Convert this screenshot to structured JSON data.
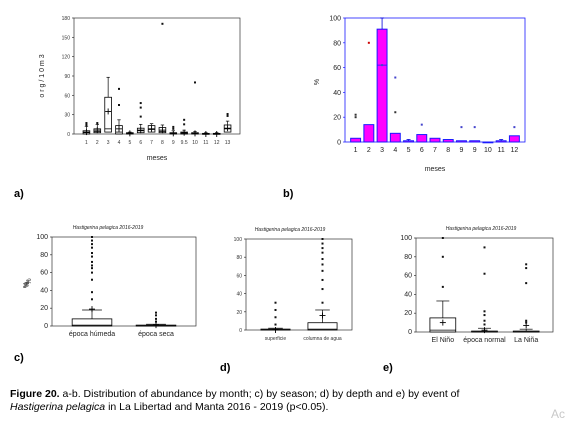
{
  "panels": {
    "a": {
      "label": "a)",
      "ylabel": "o r g / 1 0 m 3",
      "xlabel": "meses"
    },
    "b": {
      "label": "b)",
      "ylabel": "%",
      "xlabel": "meses"
    },
    "c": {
      "label": "c)",
      "title": "Hastigerina pelagica  2016-2019",
      "ylabel": "%"
    },
    "d": {
      "label": "d)",
      "title": "Hastigerina pelagica  2016-2019",
      "ylabel": "%"
    },
    "e": {
      "label": "e)",
      "title": "Hastigerina pelagica  2016-2019",
      "ylabel": "%"
    }
  },
  "caption": {
    "lead": "Figure 20.",
    "text": " a-b.  Distribution of abundance by month; c) by season; d) by depth and e) by event of ",
    "species": "Hastigerina pelagica",
    "tail": " in La Libertad and Manta 2016 - 2019 (p<0.05)."
  },
  "watermark": "Ac",
  "colors": {
    "bar_fill": "#ff00ff",
    "bar_edge": "#1a1aff",
    "error": "#0000dd",
    "outlier_red": "#cc0000"
  },
  "chart_data": [
    {
      "id": "a",
      "type": "box",
      "ylabel": "o r g / 1 0 m 3",
      "xlabel": "meses",
      "categories": [
        "1",
        "2",
        "3",
        "4",
        "5",
        "6",
        "7",
        "8",
        "9",
        "9.5",
        "10",
        "11",
        "12",
        "13"
      ],
      "ylim": [
        0,
        180
      ],
      "yticks": [
        0,
        30,
        60,
        90,
        120,
        150,
        180
      ],
      "boxes": [
        {
          "q1": 0,
          "med": 2,
          "q3": 5,
          "lo": 0,
          "hi": 12,
          "mean": 3,
          "out": [
            14,
            17
          ]
        },
        {
          "q1": 2,
          "med": 4,
          "q3": 8,
          "lo": 0,
          "hi": 15,
          "mean": 6,
          "out": [
            17
          ]
        },
        {
          "q1": 3,
          "med": 8,
          "q3": 57,
          "lo": 0,
          "hi": 88,
          "mean": 35,
          "out": []
        },
        {
          "q1": 0,
          "med": 3,
          "q3": 13,
          "lo": 0,
          "hi": 22,
          "mean": 8,
          "out": [
            45,
            70
          ]
        },
        {
          "q1": 0,
          "med": 1,
          "q3": 2,
          "lo": 0,
          "hi": 3,
          "mean": 1,
          "out": []
        },
        {
          "q1": 2,
          "med": 5,
          "q3": 9,
          "lo": 0,
          "hi": 15,
          "mean": 6,
          "out": [
            27,
            41,
            48
          ]
        },
        {
          "q1": 3,
          "med": 7,
          "q3": 13,
          "lo": 0,
          "hi": 16,
          "mean": 8,
          "out": []
        },
        {
          "q1": 2,
          "med": 4,
          "q3": 10,
          "lo": 0,
          "hi": 14,
          "mean": 6,
          "out": [
            171
          ]
        },
        {
          "q1": 0,
          "med": 1,
          "q3": 2,
          "lo": 0,
          "hi": 5,
          "mean": 1,
          "out": [
            8,
            11
          ]
        },
        {
          "q1": 0,
          "med": 1,
          "q3": 3,
          "lo": 0,
          "hi": 6,
          "mean": 2,
          "out": [
            15,
            22
          ]
        },
        {
          "q1": 0,
          "med": 1,
          "q3": 2,
          "lo": 0,
          "hi": 4,
          "mean": 1,
          "out": [
            80
          ]
        },
        {
          "q1": 0,
          "med": 0,
          "q3": 1,
          "lo": 0,
          "hi": 2,
          "mean": 0,
          "out": []
        },
        {
          "q1": 0,
          "med": 0,
          "q3": 1,
          "lo": 0,
          "hi": 2,
          "mean": 0,
          "out": []
        },
        {
          "q1": 3,
          "med": 8,
          "q3": 14,
          "lo": 0,
          "hi": 20,
          "mean": 9,
          "out": [
            28,
            31
          ]
        }
      ]
    },
    {
      "id": "b",
      "type": "bar",
      "ylabel": "%",
      "xlabel": "meses",
      "categories": [
        "1",
        "2",
        "3",
        "4",
        "5",
        "6",
        "7",
        "8",
        "9",
        "9",
        "10",
        "11",
        "12"
      ],
      "ylim": [
        0,
        100
      ],
      "yticks": [
        0,
        20,
        40,
        60,
        80,
        100
      ],
      "values": [
        3,
        14,
        91,
        7,
        1,
        6,
        3,
        2,
        1,
        1,
        0,
        1,
        5
      ],
      "err": [
        2,
        8,
        100,
        3,
        2,
        3,
        2,
        2,
        1,
        1,
        0,
        2,
        4
      ],
      "points": [
        [
          0,
          20
        ],
        [
          0,
          22
        ],
        [
          1,
          80
        ],
        [
          2,
          62
        ],
        [
          3,
          52
        ],
        [
          3,
          24
        ],
        [
          5,
          14
        ],
        [
          8,
          12
        ],
        [
          9,
          12
        ],
        [
          12,
          12
        ]
      ]
    },
    {
      "id": "c",
      "type": "box",
      "title": "Hastigerina pelagica  2016-2019",
      "ylabel": "%",
      "categories": [
        "época húmeda",
        "época seca"
      ],
      "ylim": [
        0,
        100
      ],
      "yticks": [
        0,
        20,
        40,
        60,
        80,
        100
      ],
      "boxes": [
        {
          "q1": 0,
          "med": 1,
          "q3": 8,
          "lo": 0,
          "hi": 18,
          "mean": 19,
          "out": [
            30,
            38,
            52,
            60,
            65,
            68,
            72,
            78,
            82,
            88,
            92,
            96,
            100
          ]
        },
        {
          "q1": 0,
          "med": 0,
          "q3": 1,
          "lo": 0,
          "hi": 2,
          "mean": 1,
          "out": [
            5,
            8,
            12,
            15
          ]
        }
      ]
    },
    {
      "id": "d",
      "type": "box",
      "title": "Hastigerina pelagica  2016-2019",
      "ylabel": "%",
      "categories": [
        "superficie",
        "columna de agua"
      ],
      "ylim": [
        0,
        100
      ],
      "yticks": [
        0,
        20,
        40,
        60,
        80,
        100
      ],
      "boxes": [
        {
          "q1": 0,
          "med": 0,
          "q3": 1,
          "lo": 0,
          "hi": 2,
          "mean": 0,
          "out": [
            6,
            14,
            22,
            30
          ]
        },
        {
          "q1": 0,
          "med": 1,
          "q3": 8,
          "lo": 0,
          "hi": 22,
          "mean": 16,
          "out": [
            30,
            45,
            55,
            65,
            72,
            78,
            85,
            90,
            95,
            100
          ]
        }
      ]
    },
    {
      "id": "e",
      "type": "box",
      "title": "Hastigerina pelagica  2016-2019",
      "ylabel": "%",
      "categories": [
        "El Niño",
        "época normal",
        "La Niña"
      ],
      "ylim": [
        0,
        100
      ],
      "yticks": [
        0,
        20,
        40,
        60,
        80,
        100
      ],
      "boxes": [
        {
          "q1": 0,
          "med": 2,
          "q3": 15,
          "lo": 0,
          "hi": 33,
          "mean": 10,
          "out": [
            48,
            80,
            100
          ]
        },
        {
          "q1": 0,
          "med": 0,
          "q3": 1,
          "lo": 0,
          "hi": 4,
          "mean": 2,
          "out": [
            8,
            12,
            18,
            22,
            62,
            90
          ]
        },
        {
          "q1": 0,
          "med": 0,
          "q3": 1,
          "lo": 0,
          "hi": 3,
          "mean": 7,
          "out": [
            10,
            12,
            52,
            68,
            72
          ]
        }
      ]
    }
  ]
}
